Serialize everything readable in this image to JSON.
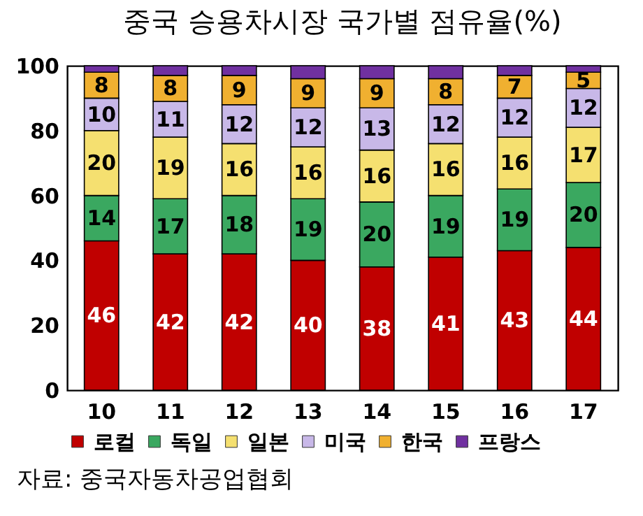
{
  "chart_data": {
    "type": "bar",
    "stacked": true,
    "title": "중국 승용차시장 국가별 점유율(%)",
    "categories": [
      "10",
      "11",
      "12",
      "13",
      "14",
      "15",
      "16",
      "17"
    ],
    "series": [
      {
        "name": "로컬",
        "color": "#c00000",
        "values": [
          46,
          42,
          42,
          40,
          38,
          41,
          43,
          44
        ],
        "value_labels": [
          "46",
          "42",
          "42",
          "40",
          "38",
          "41",
          "43",
          "44"
        ]
      },
      {
        "name": "독일",
        "color": "#3aa860",
        "values": [
          14,
          17,
          18,
          19,
          20,
          19,
          19,
          20
        ],
        "value_labels": [
          "14",
          "17",
          "18",
          "19",
          "20",
          "19",
          "19",
          "20"
        ]
      },
      {
        "name": "일본",
        "color": "#f5e070",
        "values": [
          20,
          19,
          16,
          16,
          16,
          16,
          16,
          17
        ],
        "value_labels": [
          "20",
          "19",
          "16",
          "16",
          "16",
          "16",
          "16",
          "17"
        ]
      },
      {
        "name": "미국",
        "color": "#c8b8e8",
        "values": [
          10,
          11,
          12,
          12,
          13,
          12,
          12,
          12
        ],
        "value_labels": [
          "10",
          "11",
          "12",
          "12",
          "13",
          "12",
          "12",
          "12"
        ]
      },
      {
        "name": "한국",
        "color": "#f0b030",
        "values": [
          8,
          8,
          9,
          9,
          9,
          8,
          7,
          5
        ],
        "value_labels": [
          "8",
          "8",
          "9",
          "9",
          "9",
          "8",
          "7",
          "5"
        ]
      },
      {
        "name": "프랑스",
        "color": "#7030a0",
        "values": [
          2,
          3,
          3,
          4,
          4,
          4,
          3,
          2
        ],
        "value_labels": [
          null,
          null,
          null,
          null,
          null,
          null,
          null,
          null
        ]
      }
    ],
    "ylim": [
      0,
      100
    ],
    "yticks": [
      0,
      20,
      40,
      60,
      80,
      100
    ],
    "grid": false,
    "legend": "bottom",
    "annotations": [
      "자료: 중국자동차공업협회"
    ]
  }
}
